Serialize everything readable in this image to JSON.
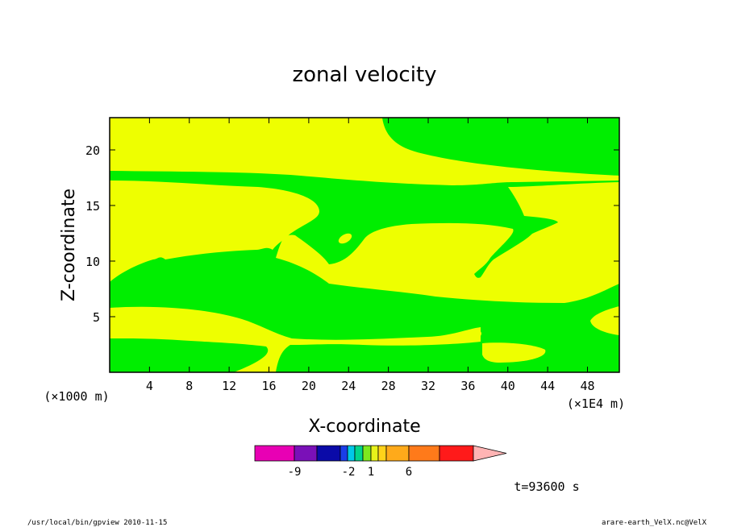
{
  "chart_data": {
    "type": "contour",
    "title": "zonal velocity",
    "xlabel": "X-coordinate",
    "ylabel": "Z-coordinate",
    "x_unit": "(×1E4 m)",
    "y_unit": "(×1000 m)",
    "xticks": [
      4,
      8,
      12,
      16,
      20,
      24,
      28,
      32,
      36,
      40,
      44,
      48
    ],
    "yticks": [
      5,
      10,
      15,
      20
    ],
    "xlim": [
      0,
      51.2
    ],
    "ylim": [
      0,
      22.9
    ],
    "time_label": "t=93600 s",
    "fill_colors": {
      "positive": "#eeff00",
      "negative": "#00ee00"
    },
    "colorbar": {
      "labels": [
        "-9",
        "-2",
        "1",
        "6"
      ],
      "colors": [
        "#e800b4",
        "#7a10b8",
        "#0a0aa8",
        "#1a3ee8",
        "#00c8e8",
        "#00d48c",
        "#7ee81e",
        "#e8f21a",
        "#ffd21a",
        "#ffaa1a",
        "#ff7a1a",
        "#ff1a1a",
        "#ff7070",
        "#ffb4b4"
      ]
    }
  },
  "footer": {
    "left": "/usr/local/bin/gpview  2010-11-15",
    "right": "arare-earth_VelX.nc@VelX"
  }
}
